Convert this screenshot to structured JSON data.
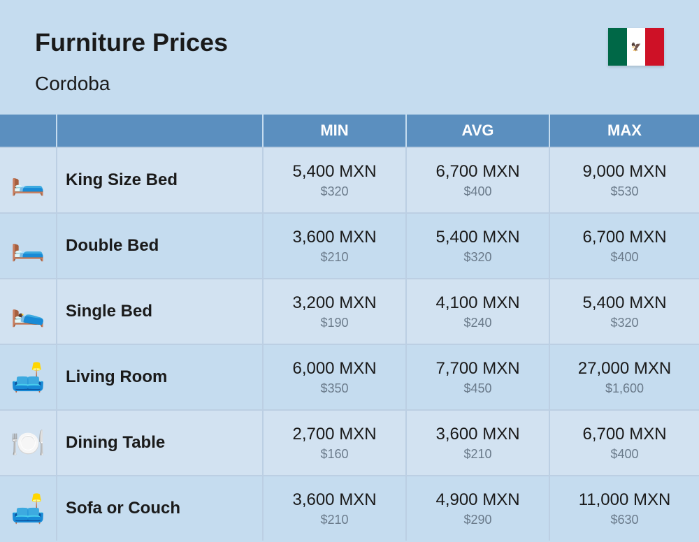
{
  "header": {
    "title": "Furniture Prices",
    "location": "Cordoba",
    "flag": {
      "left": "#006847",
      "mid": "#ffffff",
      "right": "#ce1126",
      "emblem": "🦅"
    }
  },
  "table": {
    "columns": [
      "MIN",
      "AVG",
      "MAX"
    ],
    "header_bg": "#5b8fbf",
    "header_fg": "#ffffff",
    "row_bg_odd": "#d2e2f1",
    "row_bg_even": "#c5dcef",
    "border_color": "#bccfe3",
    "primary_color": "#1a1a1a",
    "secondary_color": "#6a7a8a",
    "rows": [
      {
        "icon": "🛏️",
        "name": "King Size Bed",
        "min": {
          "p": "5,400 MXN",
          "s": "$320"
        },
        "avg": {
          "p": "6,700 MXN",
          "s": "$400"
        },
        "max": {
          "p": "9,000 MXN",
          "s": "$530"
        }
      },
      {
        "icon": "🛏️",
        "name": "Double Bed",
        "min": {
          "p": "3,600 MXN",
          "s": "$210"
        },
        "avg": {
          "p": "5,400 MXN",
          "s": "$320"
        },
        "max": {
          "p": "6,700 MXN",
          "s": "$400"
        }
      },
      {
        "icon": "🛌",
        "name": "Single Bed",
        "min": {
          "p": "3,200 MXN",
          "s": "$190"
        },
        "avg": {
          "p": "4,100 MXN",
          "s": "$240"
        },
        "max": {
          "p": "5,400 MXN",
          "s": "$320"
        }
      },
      {
        "icon": "🛋️",
        "name": "Living Room",
        "min": {
          "p": "6,000 MXN",
          "s": "$350"
        },
        "avg": {
          "p": "7,700 MXN",
          "s": "$450"
        },
        "max": {
          "p": "27,000 MXN",
          "s": "$1,600"
        }
      },
      {
        "icon": "🍽️",
        "name": "Dining Table",
        "min": {
          "p": "2,700 MXN",
          "s": "$160"
        },
        "avg": {
          "p": "3,600 MXN",
          "s": "$210"
        },
        "max": {
          "p": "6,700 MXN",
          "s": "$400"
        }
      },
      {
        "icon": "🛋️",
        "name": "Sofa or Couch",
        "min": {
          "p": "3,600 MXN",
          "s": "$210"
        },
        "avg": {
          "p": "4,900 MXN",
          "s": "$290"
        },
        "max": {
          "p": "11,000 MXN",
          "s": "$630"
        }
      }
    ]
  }
}
